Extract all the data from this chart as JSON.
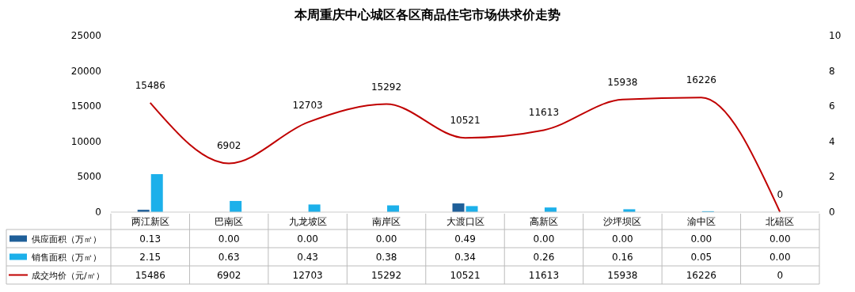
{
  "chart_data": {
    "type": "bar",
    "title": "本周重庆中心城区各区商品住宅市场供求价走势",
    "categories": [
      "两江新区",
      "巴南区",
      "九龙坡区",
      "南岸区",
      "大渡口区",
      "高新区",
      "沙坪坝区",
      "渝中区",
      "北碚区"
    ],
    "series": [
      {
        "name": "供应面积（万㎡）",
        "axis": "y2",
        "color": "#1f5f99",
        "values": [
          0.13,
          0,
          0,
          0,
          0.49,
          0,
          0,
          0,
          0
        ],
        "value_labels": [
          "0.13",
          "0.00",
          "0.00",
          "0.00",
          "0.49",
          "0.00",
          "0.00",
          "0.00",
          "0.00"
        ]
      },
      {
        "name": "销售面积（万㎡）",
        "axis": "y2",
        "color": "#1cb0ea",
        "values": [
          2.15,
          0.63,
          0.43,
          0.38,
          0.34,
          0.26,
          0.16,
          0.05,
          0
        ],
        "value_labels": [
          "2.15",
          "0.63",
          "0.43",
          "0.38",
          "0.34",
          "0.26",
          "0.16",
          "0.05",
          "0.00"
        ]
      },
      {
        "name": "成交均价（元/㎡）",
        "type": "line",
        "color": "#c00000",
        "values": [
          15486,
          6902,
          12703,
          15292,
          10521,
          11613,
          15938,
          16226,
          0
        ],
        "value_labels": [
          "15486",
          "6902",
          "12703",
          "15292",
          "10521",
          "11613",
          "15938",
          "16226",
          "0"
        ]
      }
    ],
    "ylim": [
      0,
      25000
    ],
    "yticks": [
      0,
      5000,
      10000,
      15000,
      20000,
      25000
    ],
    "y2lim": [
      0,
      10
    ],
    "y2ticks": [
      0,
      2,
      4,
      6,
      8,
      10
    ],
    "data_labels": true,
    "legend": "bottom",
    "marker": "none",
    "line_style": "solid"
  }
}
